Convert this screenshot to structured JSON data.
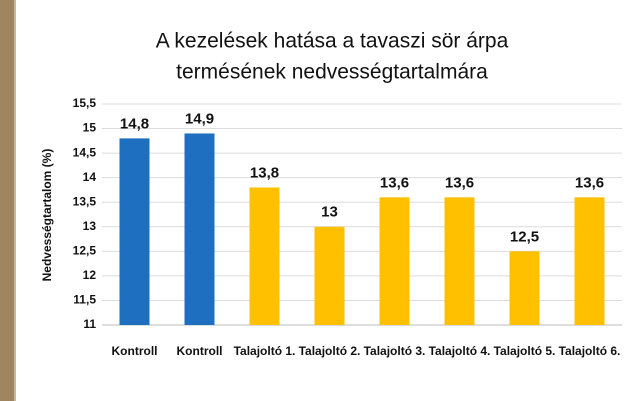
{
  "chart_data": {
    "type": "bar",
    "title": [
      "A kezelések hatása a tavaszi sör árpa",
      "termésének nedvességtartalmára"
    ],
    "y_label": "Nedvességtartalom (%)",
    "categories": [
      "Kontroll",
      "Kontroll",
      "Talajoltó 1.",
      "Talajoltó 2.",
      "Talajoltó 3.",
      "Talajoltó 4.",
      "Talajoltó 5.",
      "Talajoltó 6."
    ],
    "values": [
      14.8,
      14.9,
      13.8,
      13,
      13.6,
      13.6,
      12.5,
      13.6
    ],
    "value_labels": [
      "14,8",
      "14,9",
      "13,8",
      "13",
      "13,6",
      "13,6",
      "12,5",
      "13,6"
    ],
    "colors": [
      "#1f6fc0",
      "#1f6fc0",
      "#ffc000",
      "#ffc000",
      "#ffc000",
      "#ffc000",
      "#ffc000",
      "#ffc000"
    ],
    "ylim": [
      11,
      15.5
    ],
    "yticks": [
      11,
      {
        "value": 11.5,
        "label": "11,5"
      },
      12,
      {
        "value": 12.5,
        "label": "12,5"
      },
      13,
      {
        "value": 13.5,
        "label": "13,5"
      },
      14,
      {
        "value": 14.5,
        "label": "14,5"
      },
      15,
      {
        "value": 15.5,
        "label": "15,5"
      }
    ],
    "grid": true
  }
}
